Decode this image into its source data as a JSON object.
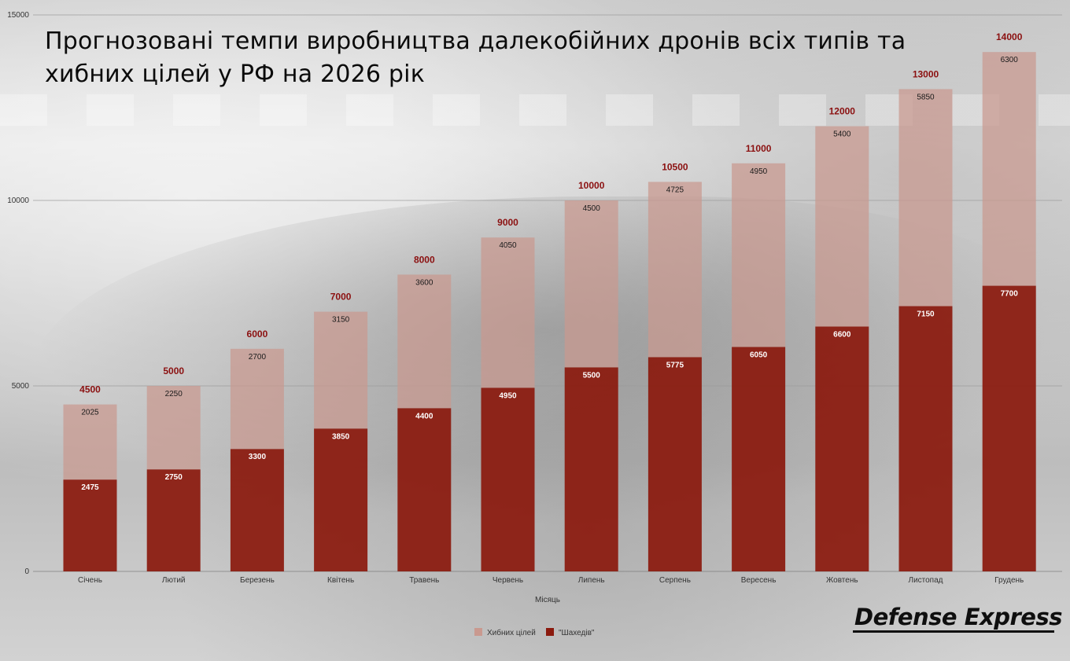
{
  "title": "Прогнозовані темпи виробництва далекобійних дронів всіх типів та хибних цілей у РФ на 2026 рік",
  "brand": "Defense Express",
  "chart_data": {
    "type": "bar",
    "stacked": true,
    "title": "Прогнозовані темпи виробництва далекобійних дронів всіх типів та хибних цілей у РФ на 2026 рік",
    "xlabel": "Місяць",
    "ylabel": "",
    "ylim": [
      0,
      15000
    ],
    "yticks": [
      0,
      5000,
      10000,
      15000
    ],
    "grid": true,
    "legend_position": "bottom-center",
    "categories": [
      "Січень",
      "Лютий",
      "Березень",
      "Квітень",
      "Травень",
      "Червень",
      "Липень",
      "Серпень",
      "Вересень",
      "Жовтень",
      "Листопад",
      "Грудень"
    ],
    "series": [
      {
        "name": "\"Шахедів\"",
        "color": "#8b1a0e",
        "values": [
          2475,
          2750,
          3300,
          3850,
          4400,
          4950,
          5500,
          5775,
          6050,
          6600,
          7150,
          7700
        ]
      },
      {
        "name": "Хибних цілей",
        "color": "#c9998f",
        "values": [
          2025,
          2250,
          2700,
          3150,
          3600,
          4050,
          4500,
          4725,
          4950,
          5400,
          5850,
          6300
        ]
      }
    ],
    "totals": [
      4500,
      5000,
      6000,
      7000,
      8000,
      9000,
      10000,
      10500,
      11000,
      12000,
      13000,
      14000
    ],
    "legend": [
      {
        "name": "Хибних цілей",
        "color": "#c9998f"
      },
      {
        "name": "\"Шахедів\"",
        "color": "#8b1a0e"
      }
    ]
  }
}
